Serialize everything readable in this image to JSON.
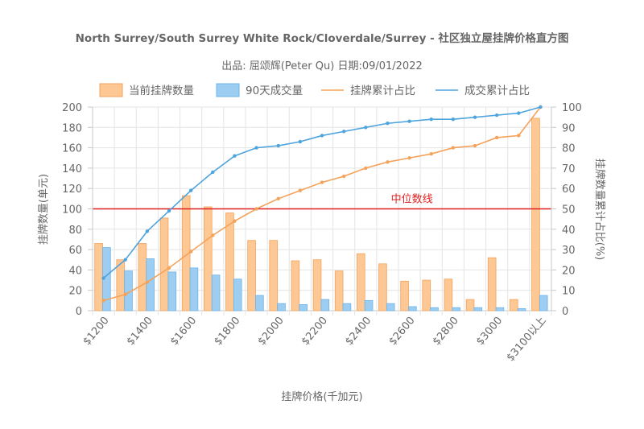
{
  "chart_data": {
    "type": "bar",
    "title": "North Surrey/South Surrey White Rock/Cloverdale/Surrey - 社区独立屋挂牌价格直方图",
    "subtitle": "出品: 屈颂辉(Peter Qu) 日期:09/01/2022",
    "xlabel": "挂牌价格(千加元)",
    "ylabel_left": "挂牌数量(单元)",
    "ylabel_right": "挂牌数量累计占比(%)",
    "ylim_left": [
      0,
      200
    ],
    "ylim_right": [
      0,
      100
    ],
    "yticks_left": [
      "0",
      "20",
      "40",
      "60",
      "80",
      "100",
      "120",
      "140",
      "160",
      "180",
      "200"
    ],
    "yticks_right": [
      "0",
      "10",
      "20",
      "30",
      "40",
      "50",
      "60",
      "70",
      "80",
      "90",
      "100"
    ],
    "grid": true,
    "legend_position": "top",
    "categories": [
      "$1200",
      "",
      "$1400",
      "",
      "$1600",
      "",
      "$1800",
      "",
      "$2000",
      "",
      "$2200",
      "",
      "$2400",
      "",
      "$2600",
      "",
      "$2800",
      "",
      "$3000",
      "",
      "$3100以上"
    ],
    "series": [
      {
        "name": "当前挂牌数量",
        "kind": "bar",
        "axis": "left",
        "color": "#fdc894",
        "border": "#f5a25a",
        "values": [
          66,
          50,
          66,
          91,
          113,
          102,
          96,
          69,
          69,
          49,
          50,
          39,
          56,
          46,
          29,
          30,
          31,
          11,
          52,
          11,
          189
        ]
      },
      {
        "name": "90天成交量",
        "kind": "bar",
        "axis": "left",
        "color": "#9dcdf1",
        "border": "#6cb3ea",
        "values": [
          62,
          39,
          51,
          38,
          42,
          35,
          31,
          15,
          7,
          6,
          11,
          7,
          10,
          7,
          4,
          3,
          3,
          3,
          3,
          2,
          15
        ]
      },
      {
        "name": "挂牌累计占比",
        "kind": "line",
        "axis": "right",
        "color": "#f5a25a",
        "values": [
          5,
          8,
          14,
          21,
          29,
          37,
          44,
          50,
          55,
          59,
          63,
          66,
          70,
          73,
          75,
          77,
          80,
          81,
          85,
          86,
          100
        ]
      },
      {
        "name": "成交累计占比",
        "kind": "line",
        "axis": "right",
        "color": "#4ea4dd",
        "values": [
          16,
          25,
          39,
          49,
          59,
          68,
          76,
          80,
          81,
          83,
          86,
          88,
          90,
          92,
          93,
          94,
          94,
          95,
          96,
          97,
          100
        ]
      }
    ],
    "reference_line": {
      "label": "中位数线",
      "axis": "right",
      "value": 50,
      "color": "#e02020"
    }
  }
}
